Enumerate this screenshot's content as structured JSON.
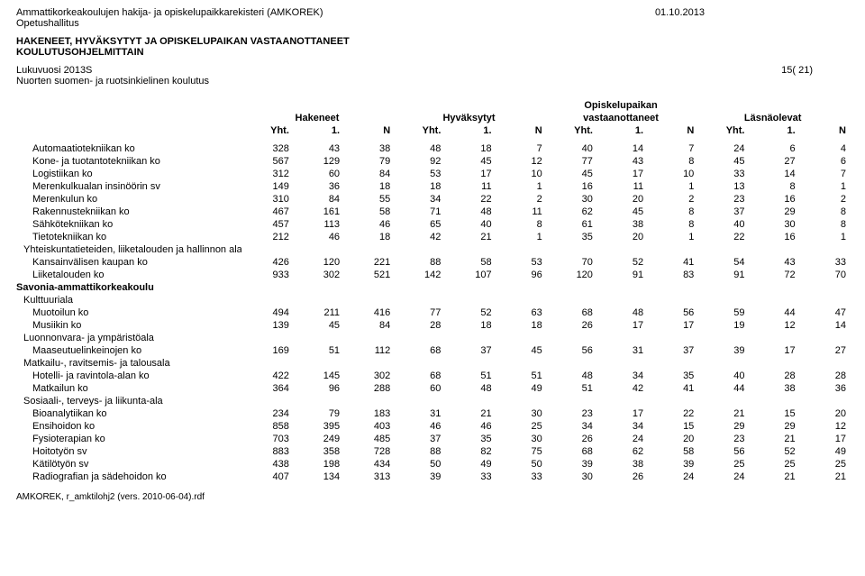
{
  "header": {
    "title": "Ammattikorkeakoulujen hakija- ja opiskelupaikkarekisteri (AMKOREK)",
    "org": "Opetushallitus",
    "date": "01.10.2013",
    "report_title_1": "HAKENEET, HYVÄKSYTYT JA OPISKELUPAIKAN VASTAANOTTANEET",
    "report_title_2": "KOULUTUSOHJELMITTAIN",
    "year": "Lukuvuosi 2013S",
    "scope": "Nuorten suomen- ja ruotsinkielinen koulutus",
    "page": "15( 21)"
  },
  "columns": {
    "groups": [
      "Hakeneet",
      "Hyväksytyt",
      "Opiskelupaikan vastaanottaneet",
      "Läsnäolevat"
    ],
    "opiskelupaikan": "Opiskelupaikan",
    "vastaanottaneet": "vastaanottaneet",
    "sub": [
      "Yht.",
      "1.",
      "N"
    ]
  },
  "rows": [
    {
      "type": "row",
      "label": "Automaatiotekniikan ko",
      "v": [
        328,
        43,
        38,
        48,
        18,
        7,
        40,
        14,
        7,
        24,
        6,
        4
      ]
    },
    {
      "type": "row",
      "label": "Kone- ja tuotantotekniikan ko",
      "v": [
        567,
        129,
        79,
        92,
        45,
        12,
        77,
        43,
        8,
        45,
        27,
        6
      ]
    },
    {
      "type": "row",
      "label": "Logistiikan ko",
      "v": [
        312,
        60,
        84,
        53,
        17,
        10,
        45,
        17,
        10,
        33,
        14,
        7
      ]
    },
    {
      "type": "row",
      "label": "Merenkulkualan insinöörin sv",
      "v": [
        149,
        36,
        18,
        18,
        11,
        1,
        16,
        11,
        1,
        13,
        8,
        1
      ]
    },
    {
      "type": "row",
      "label": "Merenkulun ko",
      "v": [
        310,
        84,
        55,
        34,
        22,
        2,
        30,
        20,
        2,
        23,
        16,
        2
      ]
    },
    {
      "type": "row",
      "label": "Rakennustekniikan ko",
      "v": [
        467,
        161,
        58,
        71,
        48,
        11,
        62,
        45,
        8,
        37,
        29,
        8
      ]
    },
    {
      "type": "row",
      "label": "Sähkötekniikan ko",
      "v": [
        457,
        113,
        46,
        65,
        40,
        8,
        61,
        38,
        8,
        40,
        30,
        8
      ]
    },
    {
      "type": "row",
      "label": "Tietotekniikan ko",
      "v": [
        212,
        46,
        18,
        42,
        21,
        1,
        35,
        20,
        1,
        22,
        16,
        1
      ]
    },
    {
      "type": "subsection",
      "label": "Yhteiskuntatieteiden, liiketalouden ja hallinnon ala"
    },
    {
      "type": "row",
      "label": "Kansainvälisen kaupan ko",
      "v": [
        426,
        120,
        221,
        88,
        58,
        53,
        70,
        52,
        41,
        54,
        43,
        33
      ]
    },
    {
      "type": "row",
      "label": "Liiketalouden ko",
      "v": [
        933,
        302,
        521,
        142,
        107,
        96,
        120,
        91,
        83,
        91,
        72,
        70
      ]
    },
    {
      "type": "section",
      "label": "Savonia-ammattikorkeakoulu"
    },
    {
      "type": "subsection",
      "label": "Kulttuuriala"
    },
    {
      "type": "row",
      "label": "Muotoilun ko",
      "v": [
        494,
        211,
        416,
        77,
        52,
        63,
        68,
        48,
        56,
        59,
        44,
        47
      ]
    },
    {
      "type": "row",
      "label": "Musiikin ko",
      "v": [
        139,
        45,
        84,
        28,
        18,
        18,
        26,
        17,
        17,
        19,
        12,
        14
      ]
    },
    {
      "type": "subsection",
      "label": "Luonnonvara- ja ympäristöala"
    },
    {
      "type": "row",
      "label": "Maaseutuelinkeinojen ko",
      "v": [
        169,
        51,
        112,
        68,
        37,
        45,
        56,
        31,
        37,
        39,
        17,
        27
      ]
    },
    {
      "type": "subsection",
      "label": "Matkailu-, ravitsemis- ja talousala"
    },
    {
      "type": "row",
      "label": "Hotelli- ja ravintola-alan ko",
      "v": [
        422,
        145,
        302,
        68,
        51,
        51,
        48,
        34,
        35,
        40,
        28,
        28
      ]
    },
    {
      "type": "row",
      "label": "Matkailun ko",
      "v": [
        364,
        96,
        288,
        60,
        48,
        49,
        51,
        42,
        41,
        44,
        38,
        36
      ]
    },
    {
      "type": "subsection",
      "label": "Sosiaali-, terveys- ja liikunta-ala"
    },
    {
      "type": "row",
      "label": "Bioanalytiikan ko",
      "v": [
        234,
        79,
        183,
        31,
        21,
        30,
        23,
        17,
        22,
        21,
        15,
        20
      ]
    },
    {
      "type": "row",
      "label": "Ensihoidon ko",
      "v": [
        858,
        395,
        403,
        46,
        46,
        25,
        34,
        34,
        15,
        29,
        29,
        12
      ]
    },
    {
      "type": "row",
      "label": "Fysioterapian ko",
      "v": [
        703,
        249,
        485,
        37,
        35,
        30,
        26,
        24,
        20,
        23,
        21,
        17
      ]
    },
    {
      "type": "row",
      "label": "Hoitotyön sv",
      "v": [
        883,
        358,
        728,
        88,
        82,
        75,
        68,
        62,
        58,
        56,
        52,
        49
      ]
    },
    {
      "type": "row",
      "label": "Kätilötyön sv",
      "v": [
        438,
        198,
        434,
        50,
        49,
        50,
        39,
        38,
        39,
        25,
        25,
        25
      ]
    },
    {
      "type": "row",
      "label": "Radiografian ja sädehoidon ko",
      "v": [
        407,
        134,
        313,
        39,
        33,
        33,
        30,
        26,
        24,
        24,
        21,
        21
      ]
    }
  ],
  "footer": "AMKOREK, r_amktilohj2 (vers. 2010-06-04).rdf"
}
